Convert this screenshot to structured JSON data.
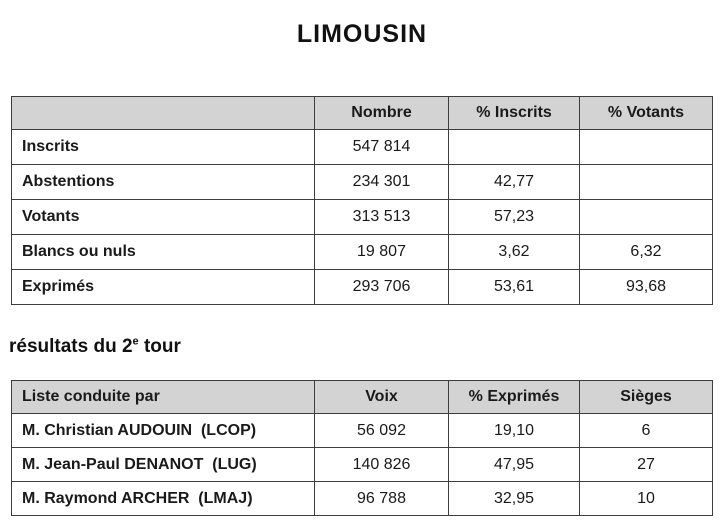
{
  "page": {
    "title": "LIMOUSIN"
  },
  "participation_table": {
    "headers": {
      "label": "",
      "nombre": "Nombre",
      "pct_inscrits": "% Inscrits",
      "pct_votants": "% Votants"
    },
    "rows": [
      [
        "Inscrits",
        "547 814",
        "",
        ""
      ],
      [
        "Abstentions",
        "234 301",
        "42,77",
        ""
      ],
      [
        "Votants",
        "313 513",
        "57,23",
        ""
      ],
      [
        "Blancs ou nuls",
        "19 807",
        "3,62",
        "6,32"
      ],
      [
        "Exprimés",
        "293 706",
        "53,61",
        "93,68"
      ]
    ]
  },
  "section": {
    "pre": "résultats du 2",
    "sup": "e",
    "post": " tour"
  },
  "results_table": {
    "headers": {
      "label": "Liste conduite par",
      "voix": "Voix",
      "pct_exprimes": "% Exprimés",
      "sieges": "Sièges"
    },
    "rows": [
      [
        "M. Christian AUDOUIN  (LCOP)",
        "56 092",
        "19,10",
        "6"
      ],
      [
        "M. Jean-Paul DENANOT  (LUG)",
        "140 826",
        "47,95",
        "27"
      ],
      [
        "M. Raymond ARCHER  (LMAJ)",
        "96 788",
        "32,95",
        "10"
      ]
    ]
  }
}
